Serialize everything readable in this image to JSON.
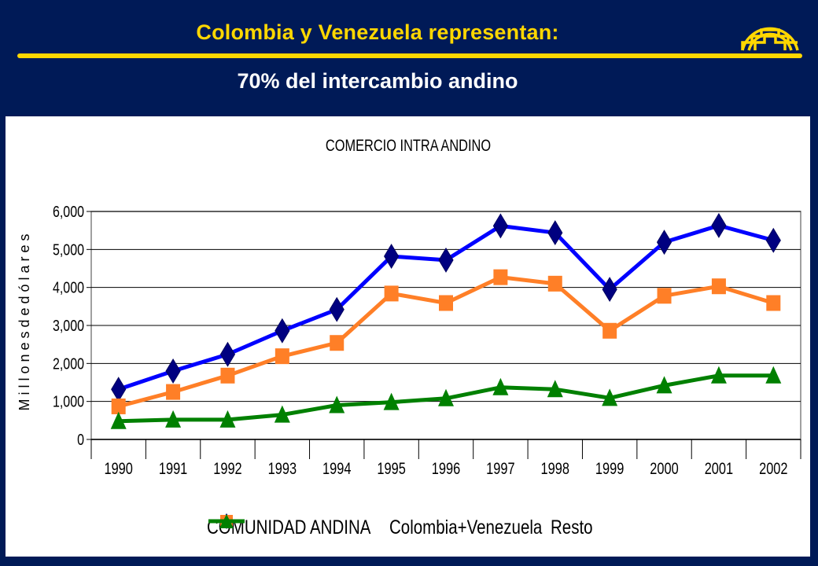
{
  "slide": {
    "title": "Colombia y Venezuela representan:",
    "subtitle": "70% del intercambio andino",
    "colors": {
      "background": "#001a57",
      "title": "#ffd700",
      "subtitle": "#ffffff"
    },
    "logo_icon": "comunidad-andina-logo-icon"
  },
  "chart_data": {
    "type": "line",
    "title": "COMERCIO INTRA ANDINO",
    "xlabel": "",
    "ylabel": "M i l l o n e s  d e  d ó l a r e s",
    "categories": [
      "1990",
      "1991",
      "1992",
      "1993",
      "1994",
      "1995",
      "1996",
      "1997",
      "1998",
      "1999",
      "2000",
      "2001",
      "2002"
    ],
    "ylim": [
      0,
      6000
    ],
    "yticks": [
      0,
      1000,
      2000,
      3000,
      4000,
      5000,
      6000
    ],
    "ytick_labels": [
      "0",
      "1,000",
      "2,000",
      "3,000",
      "4,000",
      "5,000",
      "6,000"
    ],
    "grid": true,
    "legend_position": "bottom",
    "series": [
      {
        "name": "COMUNIDAD ANDINA",
        "color": "#0000ff",
        "marker": "diamond",
        "values": [
          1320,
          1800,
          2240,
          2860,
          3420,
          4820,
          4720,
          5620,
          5440,
          3950,
          5190,
          5630,
          5240
        ]
      },
      {
        "name": "Colombia+Venezuela",
        "color": "#ff7f27",
        "marker": "square",
        "values": [
          870,
          1250,
          1680,
          2190,
          2540,
          3840,
          3590,
          4270,
          4100,
          2860,
          3780,
          4030,
          3590
        ]
      },
      {
        "name": "Resto",
        "color": "#008000",
        "marker": "triangle",
        "values": [
          480,
          520,
          520,
          650,
          900,
          980,
          1080,
          1370,
          1320,
          1090,
          1420,
          1680,
          1680
        ]
      }
    ]
  }
}
